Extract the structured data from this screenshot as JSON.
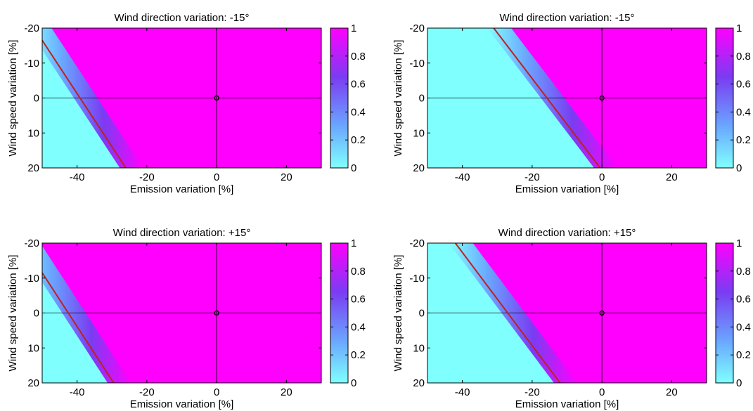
{
  "chart_data": [
    {
      "type": "heatmap",
      "title": "Wind direction variation: -15°",
      "xlabel": "Emission variation [%]",
      "ylabel": "Wind speed variation [%]",
      "xlim": [
        -50,
        30
      ],
      "ylim": [
        -20,
        20
      ],
      "y_reversed": true,
      "xticks": [
        -40,
        -20,
        0,
        20
      ],
      "yticks": [
        -20,
        -10,
        0,
        10,
        20
      ],
      "colorbar": {
        "min": 0,
        "max": 1,
        "ticks": [
          0,
          0.2,
          0.4,
          0.6,
          0.8,
          1
        ],
        "low_color": "#80FFFF",
        "high_color": "#FF00FF"
      },
      "contour_color": "#C02020",
      "contour_line": {
        "x": [
          -50,
          -26
        ],
        "y": [
          -16.5,
          20
        ]
      },
      "transition_width_x": 5,
      "reference_point": {
        "x": 0,
        "y": 0
      },
      "crosshair": {
        "x": 0,
        "y": 0
      }
    },
    {
      "type": "heatmap",
      "title": "Wind direction variation: -15°",
      "xlabel": "Emission variation [%]",
      "ylabel": "Wind speed variation [%]",
      "xlim": [
        -50,
        30
      ],
      "ylim": [
        -20,
        20
      ],
      "y_reversed": true,
      "xticks": [
        -40,
        -20,
        0,
        20
      ],
      "yticks": [
        -20,
        -10,
        0,
        10,
        20
      ],
      "colorbar": {
        "min": 0,
        "max": 1,
        "ticks": [
          0,
          0.2,
          0.4,
          0.6,
          0.8,
          1
        ],
        "low_color": "#80FFFF",
        "high_color": "#FF00FF"
      },
      "contour_color": "#C02020",
      "contour_line": {
        "x": [
          -31,
          -0.5
        ],
        "y": [
          -20,
          20
        ]
      },
      "transition_width_x": 5,
      "reference_point": {
        "x": 0,
        "y": 0
      },
      "crosshair": {
        "x": 0,
        "y": 0
      }
    },
    {
      "type": "heatmap",
      "title": "Wind direction variation: +15°",
      "xlabel": "Emission variation [%]",
      "ylabel": "Wind speed variation [%]",
      "xlim": [
        -50,
        30
      ],
      "ylim": [
        -20,
        20
      ],
      "y_reversed": true,
      "xticks": [
        -40,
        -20,
        0,
        20
      ],
      "yticks": [
        -20,
        -10,
        0,
        10,
        20
      ],
      "colorbar": {
        "min": 0,
        "max": 1,
        "ticks": [
          0,
          0.2,
          0.4,
          0.6,
          0.8,
          1
        ],
        "low_color": "#80FFFF",
        "high_color": "#FF00FF"
      },
      "contour_color": "#C02020",
      "contour_line": {
        "x": [
          -50,
          -29.5
        ],
        "y": [
          -11.5,
          20
        ]
      },
      "transition_width_x": 5,
      "reference_point": {
        "x": 0,
        "y": 0
      },
      "crosshair": {
        "x": 0,
        "y": 0
      }
    },
    {
      "type": "heatmap",
      "title": "Wind direction variation: +15°",
      "xlabel": "Emission variation [%]",
      "ylabel": "Wind speed variation [%]",
      "xlim": [
        -50,
        30
      ],
      "ylim": [
        -20,
        20
      ],
      "y_reversed": true,
      "xticks": [
        -40,
        -20,
        0,
        20
      ],
      "yticks": [
        -20,
        -10,
        0,
        10,
        20
      ],
      "colorbar": {
        "min": 0,
        "max": 1,
        "ticks": [
          0,
          0.2,
          0.4,
          0.6,
          0.8,
          1
        ],
        "low_color": "#80FFFF",
        "high_color": "#FF00FF"
      },
      "contour_color": "#C02020",
      "contour_line": {
        "x": [
          -42,
          -12
        ],
        "y": [
          -20,
          20
        ]
      },
      "transition_width_x": 5,
      "reference_point": {
        "x": 0,
        "y": 0
      },
      "crosshair": {
        "x": 0,
        "y": 0
      }
    }
  ]
}
